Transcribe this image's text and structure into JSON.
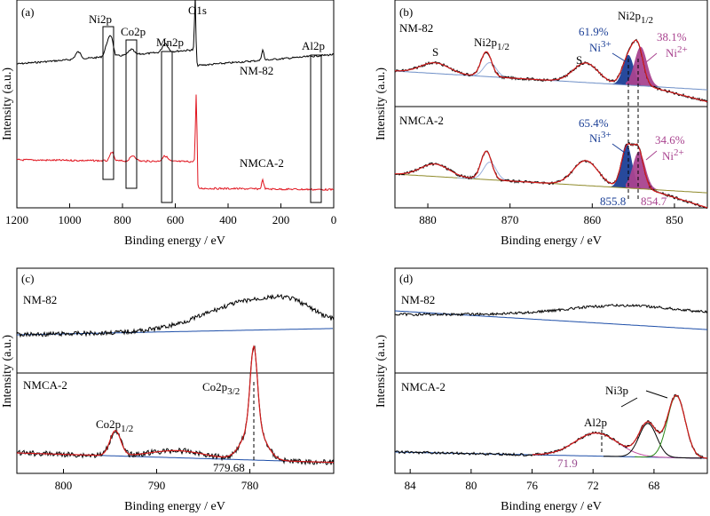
{
  "chart_data": [
    {
      "panel": "(a)",
      "type": "line",
      "xlabel": "Binding energy / eV",
      "ylabel": "Intensity (a.u.)",
      "xlim": [
        1200,
        0
      ],
      "xticks": [
        "1200",
        "1000",
        "800",
        "600",
        "400",
        "200",
        "0"
      ],
      "series": [
        {
          "name": "NM-82",
          "color": "#000000"
        },
        {
          "name": "NMCA-2",
          "color": "#e0141e"
        }
      ],
      "peak_labels": [
        "Ni2p",
        "Co2p",
        "Mn2p",
        "O1s",
        "Al2p"
      ],
      "peak_positions": [
        855,
        780,
        642,
        531,
        73
      ]
    },
    {
      "panel": "(b)",
      "type": "line",
      "xlabel": "Binding energy / eV",
      "ylabel": "Intensity (a.u.)",
      "xlim": [
        884,
        846
      ],
      "xticks": [
        "880",
        "870",
        "860",
        "850"
      ],
      "top": {
        "name": "NM-82",
        "ni3_pct": "61.9%",
        "ni2_pct": "38.1%"
      },
      "bottom": {
        "name": "NMCA-2",
        "ni3_pct": "65.4%",
        "ni2_pct": "34.6%"
      },
      "labels": {
        "s": "S",
        "ni2p": "Ni2p",
        "sub12": "1/2",
        "ni": "Ni",
        "sup3": "3+",
        "sup2": "2+"
      },
      "markers": [
        "855.8",
        "854.7"
      ]
    },
    {
      "panel": "(c)",
      "type": "line",
      "xlabel": "Binding energy / eV",
      "ylabel": "Intensity (a.u.)",
      "xlim": [
        805,
        771
      ],
      "xticks": [
        "800",
        "790",
        "780"
      ],
      "top": {
        "name": "NM-82"
      },
      "bottom": {
        "name": "NMCA-2"
      },
      "labels": {
        "co2p": "Co2p",
        "sub12": "1/2",
        "sub32": "3/2"
      },
      "marker": "779.68"
    },
    {
      "panel": "(d)",
      "type": "line",
      "xlabel": "Binding energy / eV",
      "ylabel": "Intensity (a.u.)",
      "xlim": [
        85,
        64.5
      ],
      "xticks": [
        "84",
        "80",
        "76",
        "72",
        "68"
      ],
      "top": {
        "name": "NM-82"
      },
      "bottom": {
        "name": "NMCA-2"
      },
      "labels": {
        "ni3p": "Ni3p",
        "al2p": "Al2p"
      },
      "marker": "71.9"
    }
  ]
}
